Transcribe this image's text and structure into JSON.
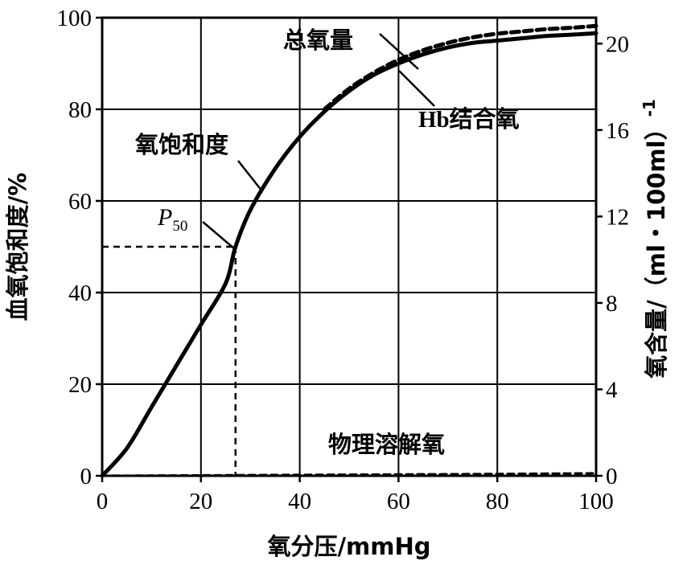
{
  "chart_data": {
    "type": "line",
    "xlabel": "氧分压/mmHg",
    "ylabel": "血氧饱和度/%",
    "y2label": "氧含量/（ml・100ml）",
    "y2label_superscript": "-1",
    "xlim": [
      0,
      100
    ],
    "ylim": [
      0,
      100
    ],
    "y2lim": [
      0,
      21.2
    ],
    "xticks": [
      0,
      20,
      40,
      60,
      80,
      100
    ],
    "yticks": [
      0,
      20,
      40,
      60,
      80,
      100
    ],
    "y2ticks": [
      0,
      4,
      8,
      12,
      16,
      20
    ],
    "grid": true,
    "series": [
      {
        "name": "氧饱和度",
        "style": "solid",
        "x": [
          0,
          5,
          10,
          15,
          20,
          25,
          27,
          30,
          35,
          40,
          45,
          50,
          55,
          60,
          65,
          70,
          75,
          80,
          85,
          90,
          95,
          100
        ],
        "y": [
          0,
          6,
          15,
          24,
          33,
          42,
          50,
          58,
          67,
          74,
          79.5,
          84,
          87.5,
          90,
          92,
          93.5,
          94.5,
          95,
          95.5,
          96,
          96.3,
          96.6
        ]
      },
      {
        "name": "Hb结合氧",
        "style": "solid",
        "x": [
          0,
          5,
          10,
          15,
          20,
          25,
          27,
          30,
          35,
          40,
          45,
          50,
          55,
          60,
          65,
          70,
          75,
          80,
          85,
          90,
          95,
          100
        ],
        "y": [
          0,
          6,
          15,
          24,
          33,
          42,
          50,
          58,
          67,
          74,
          79.5,
          84,
          87.5,
          90,
          92,
          93.5,
          94.5,
          95,
          95.5,
          96,
          96.3,
          96.6
        ]
      },
      {
        "name": "总氧量",
        "style": "dashed",
        "x": [
          45,
          50,
          55,
          60,
          65,
          70,
          75,
          80,
          85,
          90,
          95,
          100
        ],
        "y": [
          80,
          84.5,
          88,
          90.8,
          92.9,
          94.5,
          95.7,
          96.5,
          97,
          97.5,
          97.8,
          98.2
        ]
      },
      {
        "name": "物理溶解氧",
        "style": "dashed",
        "x": [
          0,
          20,
          40,
          60,
          80,
          100
        ],
        "y": [
          0,
          0.1,
          0.2,
          0.3,
          0.4,
          0.55
        ]
      }
    ],
    "p50": {
      "label": "P",
      "subscript": "50",
      "x": 27,
      "y": 50
    },
    "annotations": [
      {
        "text": "总氧量",
        "target": [
          60,
          90
        ]
      },
      {
        "text": "Hb结合氧",
        "target": [
          62,
          89
        ]
      },
      {
        "text": "氧饱和度",
        "target": [
          33,
          60
        ]
      },
      {
        "text": "物理溶解氧",
        "target": null
      }
    ]
  }
}
